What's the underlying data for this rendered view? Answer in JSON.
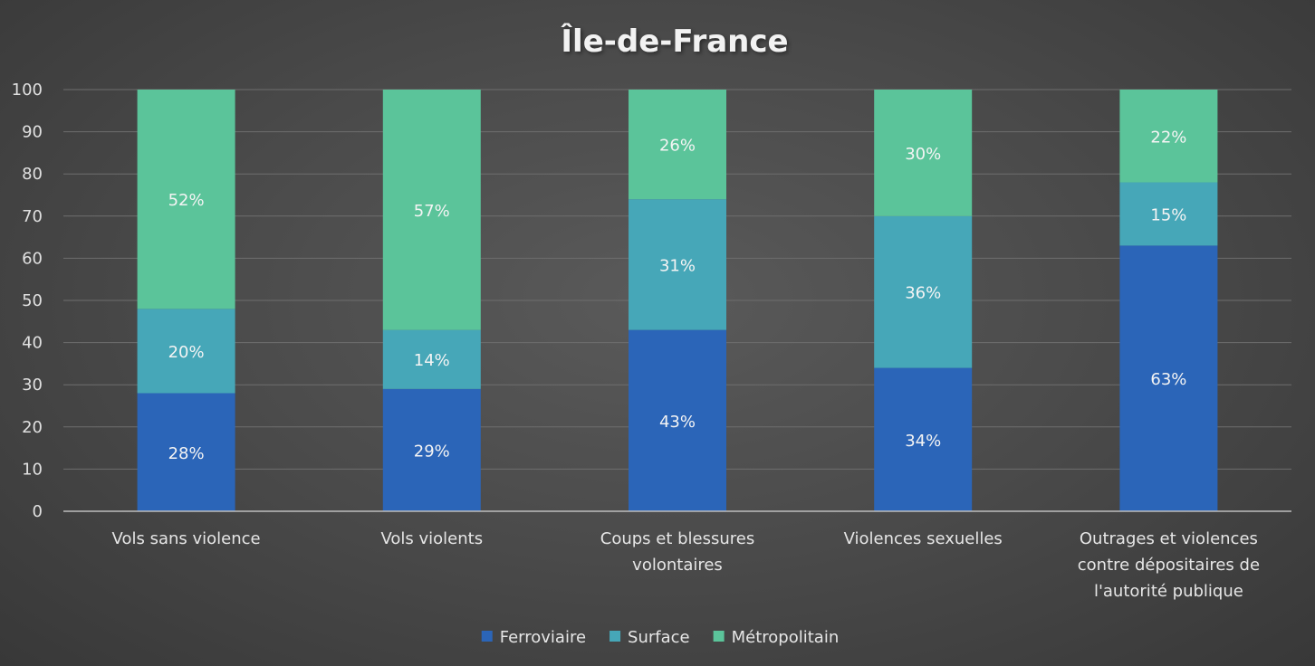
{
  "chart_data": {
    "type": "bar",
    "stacked": true,
    "title": "Île-de-France",
    "ylim": [
      0,
      100
    ],
    "yticks": [
      0,
      10,
      20,
      30,
      40,
      50,
      60,
      70,
      80,
      90,
      100
    ],
    "grid": true,
    "legend_position": "bottom",
    "categories": [
      [
        "Vols sans violence"
      ],
      [
        "Vols violents"
      ],
      [
        "Coups et blessures",
        "volontaires"
      ],
      [
        "Violences sexuelles"
      ],
      [
        "Outrages et violences",
        "contre dépositaires de",
        "l'autorité publique"
      ]
    ],
    "series": [
      {
        "name": "Ferroviaire",
        "color": "#2b65b8",
        "values": [
          28,
          29,
          43,
          34,
          63
        ],
        "labels": [
          "28%",
          "29%",
          "43%",
          "34%",
          "63%"
        ]
      },
      {
        "name": "Surface",
        "color": "#46a7b8",
        "values": [
          20,
          14,
          31,
          36,
          15
        ],
        "labels": [
          "20%",
          "14%",
          "31%",
          "36%",
          "15%"
        ]
      },
      {
        "name": "Métropolitain",
        "color": "#5bc49a",
        "values": [
          52,
          57,
          26,
          30,
          22
        ],
        "labels": [
          "52%",
          "57%",
          "26%",
          "30%",
          "22%"
        ]
      }
    ]
  }
}
